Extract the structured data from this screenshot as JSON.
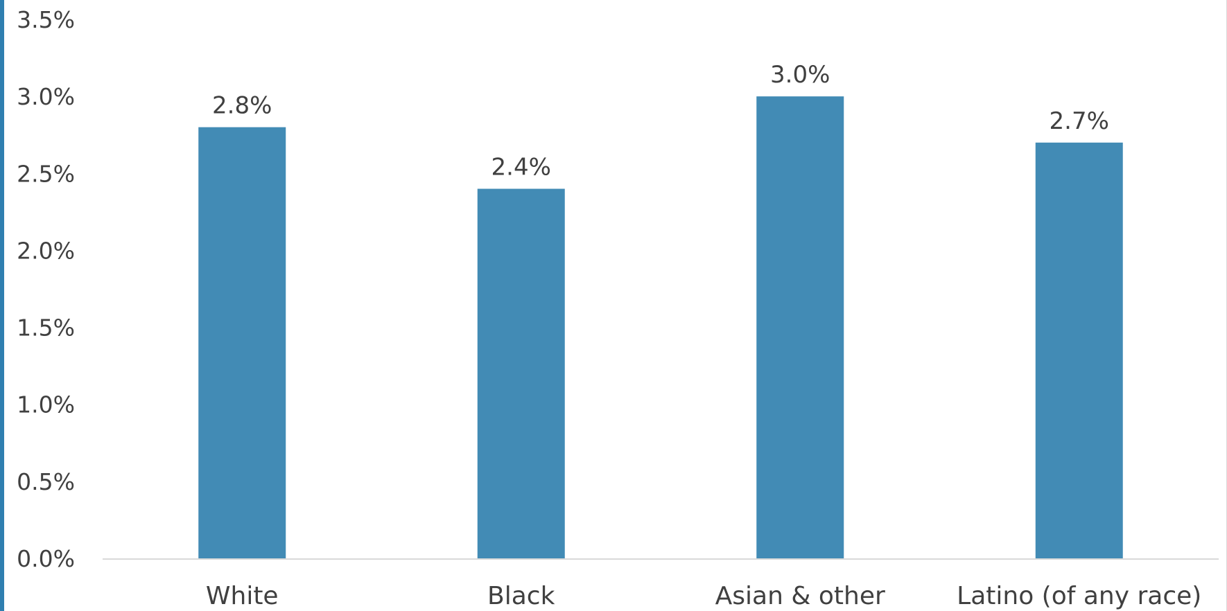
{
  "chart_data": {
    "type": "bar",
    "categories": [
      "White",
      "Black",
      "Asian & other",
      "Latino (of any race)"
    ],
    "values": [
      2.8,
      2.4,
      3.0,
      2.7
    ],
    "data_labels": [
      "2.8%",
      "2.4%",
      "3.0%",
      "2.7%"
    ],
    "title": "",
    "xlabel": "",
    "ylabel": "",
    "ylim": [
      0,
      3.5
    ],
    "y_ticks": [
      0.0,
      0.5,
      1.0,
      1.5,
      2.0,
      2.5,
      3.0,
      3.5
    ],
    "y_tick_labels": [
      "0.0%",
      "0.5%",
      "1.0%",
      "1.5%",
      "2.0%",
      "2.5%",
      "3.0%",
      "3.5%"
    ],
    "grid": false,
    "legend": "none",
    "bar_color": "#428bb5"
  }
}
